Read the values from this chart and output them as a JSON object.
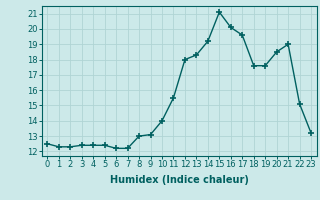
{
  "x": [
    0,
    1,
    2,
    3,
    4,
    5,
    6,
    7,
    8,
    9,
    10,
    11,
    12,
    13,
    14,
    15,
    16,
    17,
    18,
    19,
    20,
    21,
    22,
    23
  ],
  "y": [
    12.5,
    12.3,
    12.3,
    12.4,
    12.4,
    12.4,
    12.2,
    12.2,
    13.0,
    13.1,
    14.0,
    15.5,
    18.0,
    18.3,
    19.2,
    21.1,
    20.1,
    19.6,
    17.6,
    17.6,
    18.5,
    19.0,
    15.1,
    13.2
  ],
  "line_color": "#006060",
  "marker": "+",
  "marker_size": 4,
  "bg_color": "#cce9e9",
  "grid_color": "#b0d4d4",
  "xlabel": "Humidex (Indice chaleur)",
  "ylabel_ticks": [
    12,
    13,
    14,
    15,
    16,
    17,
    18,
    19,
    20,
    21
  ],
  "ylim": [
    11.7,
    21.5
  ],
  "xlim": [
    -0.5,
    23.5
  ],
  "xtick_labels": [
    "0",
    "1",
    "2",
    "3",
    "4",
    "5",
    "6",
    "7",
    "8",
    "9",
    "10",
    "11",
    "12",
    "13",
    "14",
    "15",
    "16",
    "17",
    "18",
    "19",
    "20",
    "21",
    "22",
    "23"
  ],
  "xlabel_fontsize": 7,
  "tick_fontsize": 6,
  "line_width": 1.0
}
